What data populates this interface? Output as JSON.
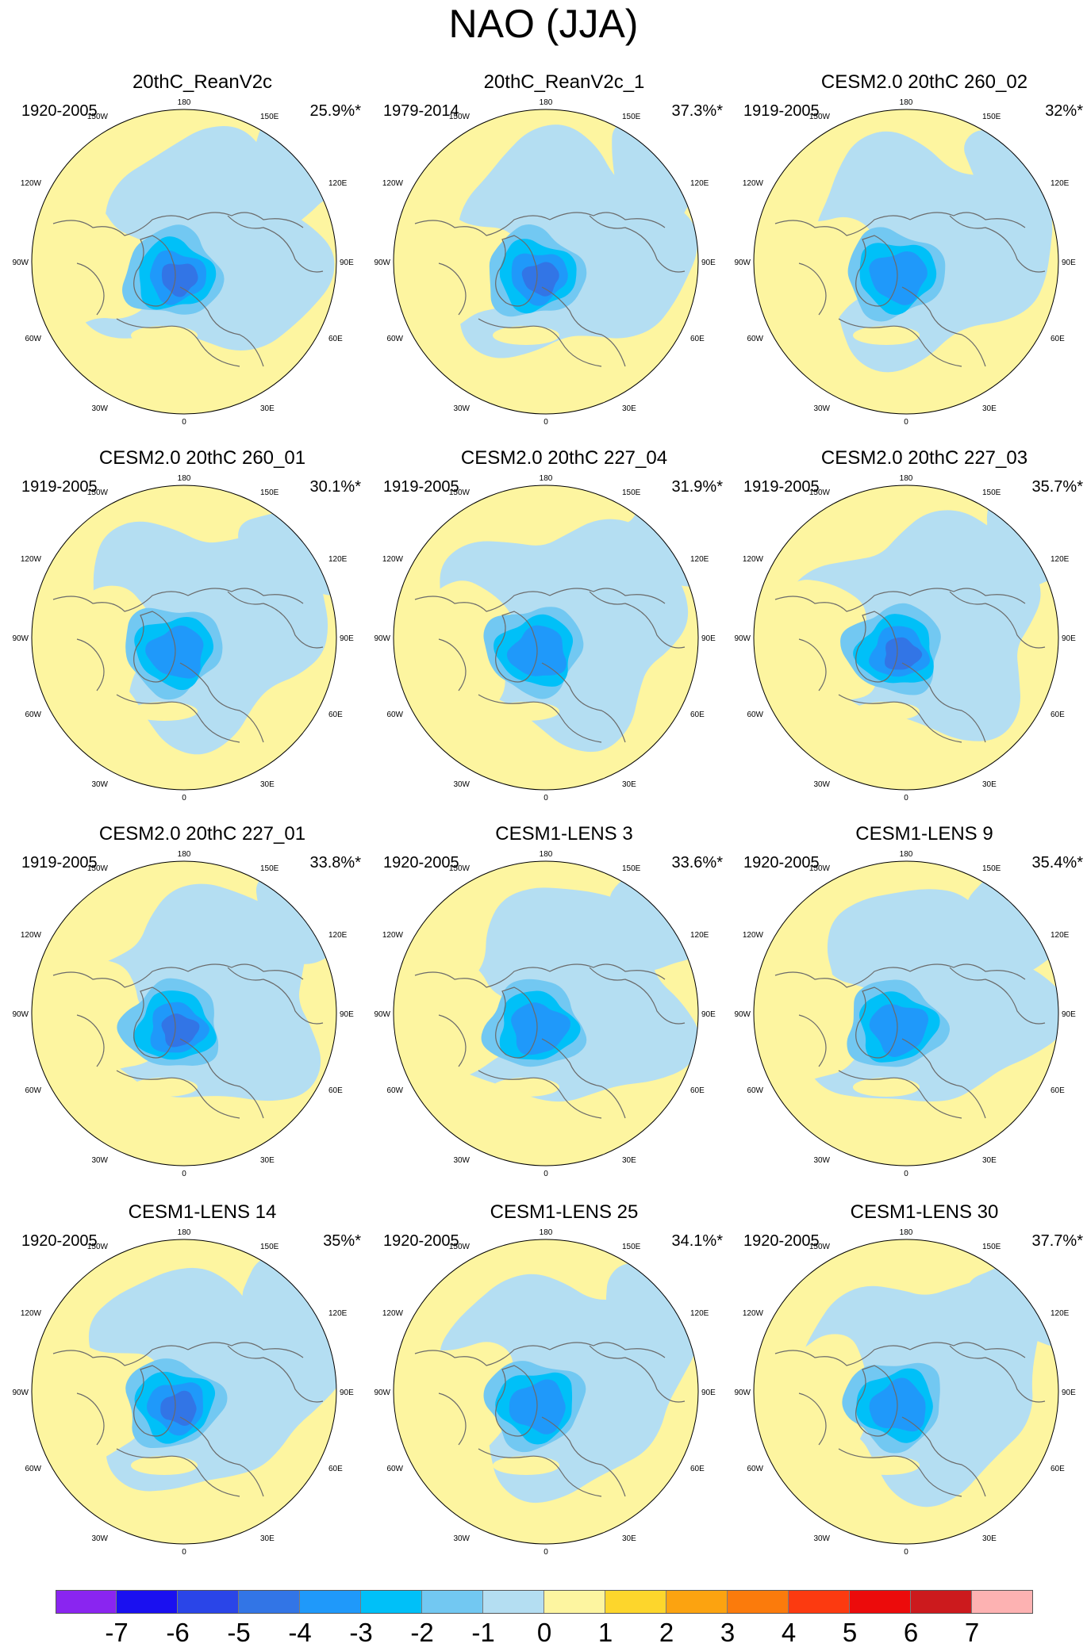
{
  "title": "NAO (JJA)",
  "lon_labels": {
    "top": "180",
    "bottom": "0",
    "ul": "150W",
    "ur": "150E",
    "l1": "120W",
    "r1": "120E",
    "l2": "90W",
    "r2": "90E",
    "l3": "60W",
    "r3": "60E",
    "ll": "30W",
    "lr": "30E"
  },
  "panels": [
    {
      "title": "20thC_ReanV2c",
      "period": "1920-2005",
      "variance": "25.9%*",
      "center_min": -4,
      "euro_max": 2
    },
    {
      "title": "20thC_ReanV2c_1",
      "period": "1979-2014",
      "variance": "37.3%*",
      "center_min": -4,
      "euro_max": 2
    },
    {
      "title": "CESM2.0 20thC 260_02",
      "period": "1919-2005",
      "variance": "32%*",
      "center_min": -3,
      "euro_max": 2
    },
    {
      "title": "CESM2.0 20thC 260_01",
      "period": "1919-2005",
      "variance": "30.1%*",
      "center_min": -3,
      "euro_max": 2
    },
    {
      "title": "CESM2.0 20thC 227_04",
      "period": "1919-2005",
      "variance": "31.9%*",
      "center_min": -3,
      "euro_max": 2
    },
    {
      "title": "CESM2.0 20thC 227_03",
      "period": "1919-2005",
      "variance": "35.7%*",
      "center_min": -4,
      "euro_max": 2
    },
    {
      "title": "CESM2.0 20thC 227_01",
      "period": "1919-2005",
      "variance": "33.8%*",
      "center_min": -4,
      "euro_max": 2
    },
    {
      "title": "CESM1-LENS 3",
      "period": "1920-2005",
      "variance": "33.6%*",
      "center_min": -3,
      "euro_max": 2
    },
    {
      "title": "CESM1-LENS 9",
      "period": "1920-2005",
      "variance": "35.4%*",
      "center_min": -3,
      "euro_max": 2
    },
    {
      "title": "CESM1-LENS 14",
      "period": "1920-2005",
      "variance": "35%*",
      "center_min": -4,
      "euro_max": 2
    },
    {
      "title": "CESM1-LENS 25",
      "period": "1920-2005",
      "variance": "34.1%*",
      "center_min": -3,
      "euro_max": 2
    },
    {
      "title": "CESM1-LENS 30",
      "period": "1920-2005",
      "variance": "37.7%*",
      "center_min": -3,
      "euro_max": 2
    }
  ],
  "colorbar": {
    "ticks": [
      "-7",
      "-6",
      "-5",
      "-4",
      "-3",
      "-2",
      "-1",
      "0",
      "1",
      "2",
      "3",
      "4",
      "5",
      "6",
      "7"
    ],
    "colors": [
      "#8a25f0",
      "#1a10f0",
      "#2a45e8",
      "#3275e6",
      "#1f99fa",
      "#00c0f8",
      "#72c8f2",
      "#b4def2",
      "#fdf5a0",
      "#fdd62c",
      "#fca310",
      "#fb7b0c",
      "#fc3a10",
      "#ec0b0b",
      "#cc1a1d",
      "#fdb2b2"
    ]
  }
}
